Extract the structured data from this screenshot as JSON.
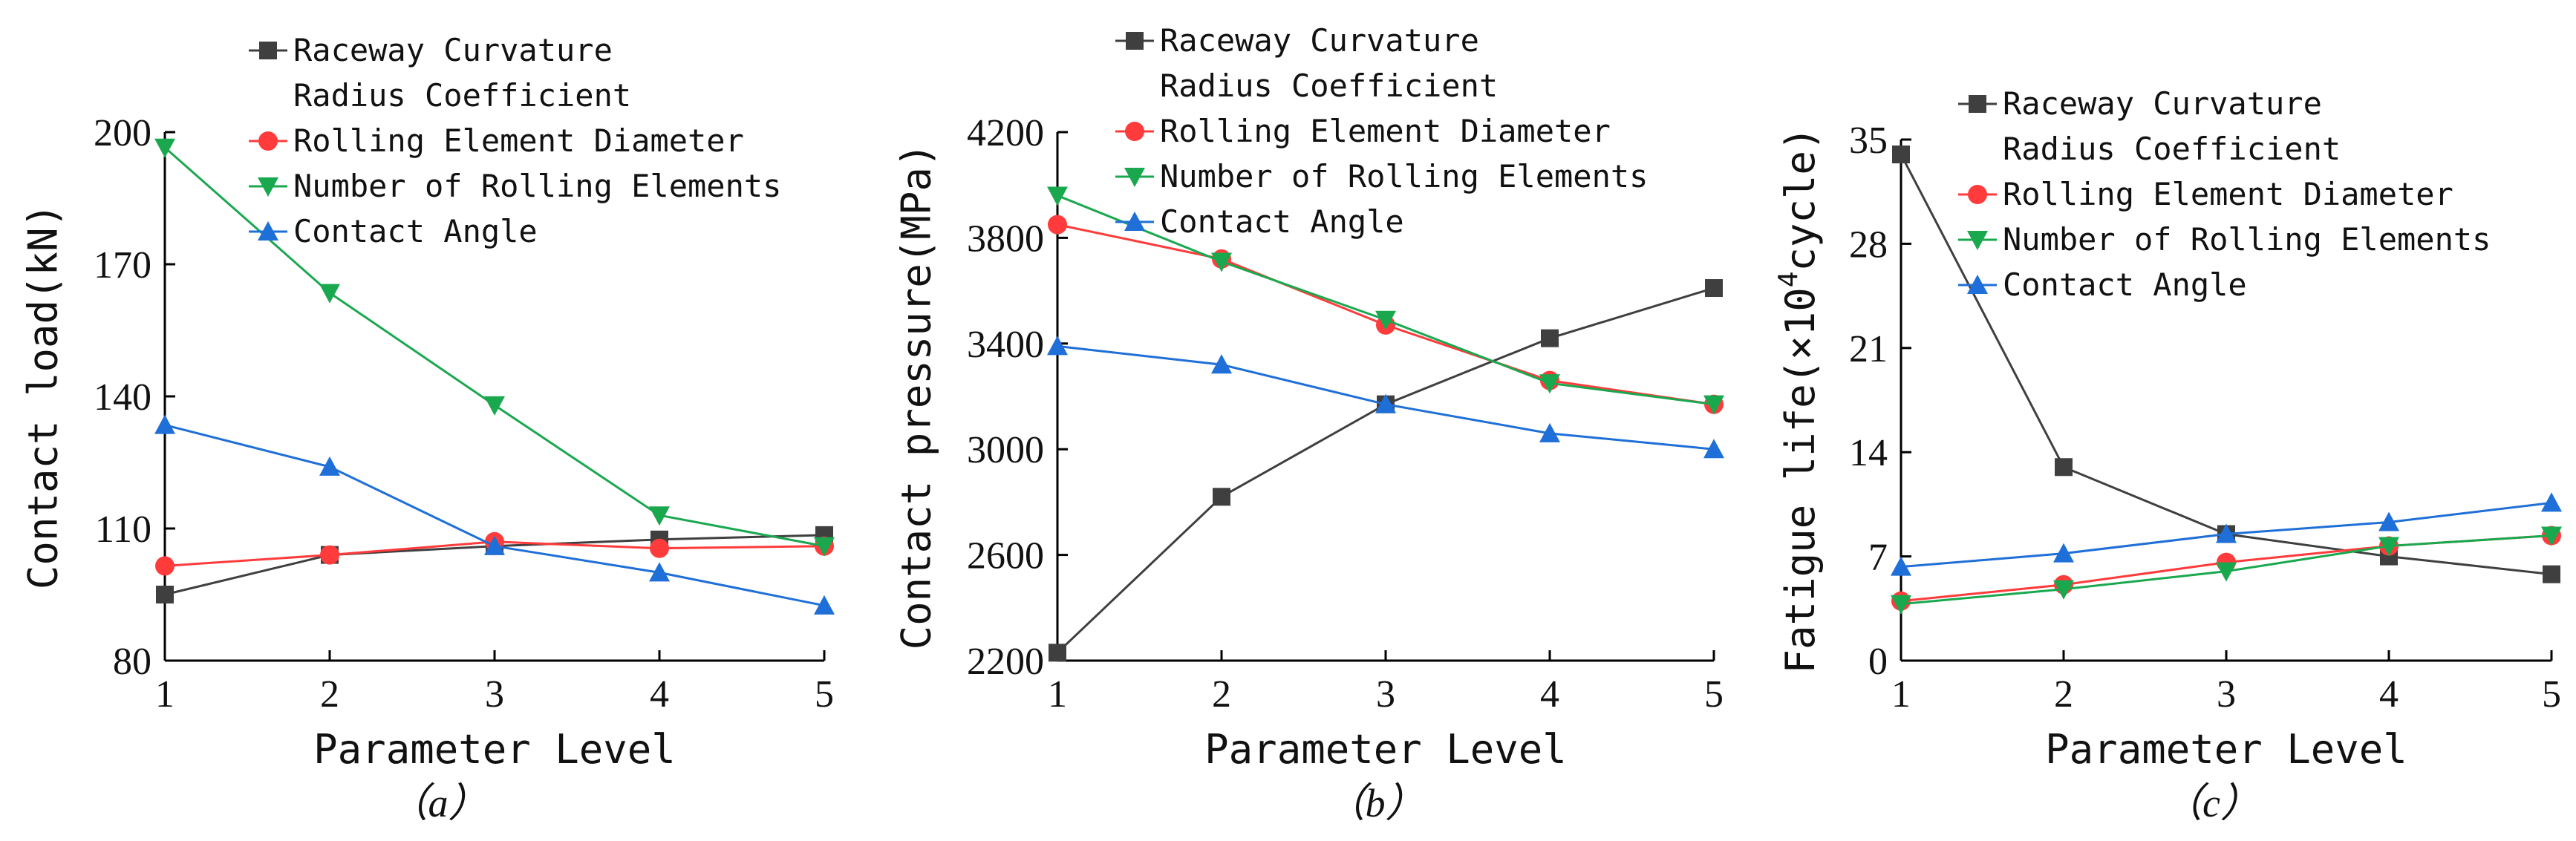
{
  "chart_data": [
    {
      "type": "line",
      "panel_label": "（a）",
      "xlabel": "Parameter Level",
      "ylabel": "Contact load(kN)",
      "x": [
        1,
        2,
        3,
        4,
        5
      ],
      "xlim": [
        1,
        5
      ],
      "ylim": [
        80,
        200
      ],
      "yticks": [
        80,
        110,
        140,
        170,
        200
      ],
      "series": [
        {
          "name": "Raceway Curvature Radius Coefficient",
          "name_lines": [
            "Raceway Curvature",
            "Radius Coefficient"
          ],
          "color": "#3f3f3f",
          "marker": "square",
          "values": [
            95,
            104,
            106,
            107.5,
            108.5
          ]
        },
        {
          "name": "Rolling Element Diameter",
          "name_lines": [
            "Rolling Element Diameter"
          ],
          "color": "#ff3b3b",
          "marker": "circle",
          "values": [
            101.5,
            104,
            107,
            105.5,
            106
          ]
        },
        {
          "name": "Number of Rolling Elements",
          "name_lines": [
            "Number of Rolling Elements"
          ],
          "color": "#1aa84f",
          "marker": "triangle-down",
          "values": [
            196.5,
            163.5,
            138,
            113,
            106
          ]
        },
        {
          "name": "Contact Angle",
          "name_lines": [
            "Contact Angle"
          ],
          "color": "#1f6fd8",
          "marker": "triangle-up",
          "values": [
            133.5,
            124,
            106,
            100,
            92.5
          ]
        }
      ]
    },
    {
      "type": "line",
      "panel_label": "（b）",
      "xlabel": "Parameter Level",
      "ylabel": "Contact pressure(MPa)",
      "x": [
        1,
        2,
        3,
        4,
        5
      ],
      "xlim": [
        1,
        5
      ],
      "ylim": [
        2200,
        4200
      ],
      "yticks": [
        2200,
        2600,
        3000,
        3400,
        3800,
        4200
      ],
      "series": [
        {
          "name": "Raceway Curvature Radius Coefficient",
          "name_lines": [
            "Raceway Curvature",
            "Radius Coefficient"
          ],
          "color": "#3f3f3f",
          "marker": "square",
          "values": [
            2230,
            2820,
            3170,
            3420,
            3610
          ]
        },
        {
          "name": "Rolling Element Diameter",
          "name_lines": [
            "Rolling Element Diameter"
          ],
          "color": "#ff3b3b",
          "marker": "circle",
          "values": [
            3850,
            3720,
            3470,
            3260,
            3170
          ]
        },
        {
          "name": "Number of Rolling Elements",
          "name_lines": [
            "Number of Rolling Elements"
          ],
          "color": "#1aa84f",
          "marker": "triangle-down",
          "values": [
            3960,
            3710,
            3490,
            3250,
            3170
          ]
        },
        {
          "name": "Contact Angle",
          "name_lines": [
            "Contact Angle"
          ],
          "color": "#1f6fd8",
          "marker": "triangle-up",
          "values": [
            3390,
            3320,
            3170,
            3060,
            3000
          ]
        }
      ]
    },
    {
      "type": "line",
      "panel_label": "（c）",
      "xlabel": "Parameter Level",
      "ylabel_prefix": "Fatigue life(×10",
      "ylabel_sup": "4",
      "ylabel_suffix": "cycle)",
      "x": [
        1,
        2,
        3,
        4,
        5
      ],
      "xlim": [
        1,
        5
      ],
      "ylim": [
        0,
        35
      ],
      "yticks": [
        0,
        7,
        14,
        21,
        28,
        35
      ],
      "series": [
        {
          "name": "Raceway Curvature Radius Coefficient",
          "name_lines": [
            "Raceway Curvature",
            "Radius Coefficient"
          ],
          "color": "#3f3f3f",
          "marker": "square",
          "values": [
            34,
            13,
            8.5,
            7,
            5.8
          ]
        },
        {
          "name": "Rolling Element Diameter",
          "name_lines": [
            "Rolling Element Diameter"
          ],
          "color": "#ff3b3b",
          "marker": "circle",
          "values": [
            4,
            5.1,
            6.6,
            7.7,
            8.4
          ]
        },
        {
          "name": "Number of Rolling Elements",
          "name_lines": [
            "Number of Rolling Elements"
          ],
          "color": "#1aa84f",
          "marker": "triangle-down",
          "values": [
            3.8,
            4.8,
            6,
            7.7,
            8.4
          ]
        },
        {
          "name": "Contact Angle",
          "name_lines": [
            "Contact Angle"
          ],
          "color": "#1f6fd8",
          "marker": "triangle-up",
          "values": [
            6.3,
            7.2,
            8.5,
            9.3,
            10.6
          ]
        }
      ]
    }
  ]
}
